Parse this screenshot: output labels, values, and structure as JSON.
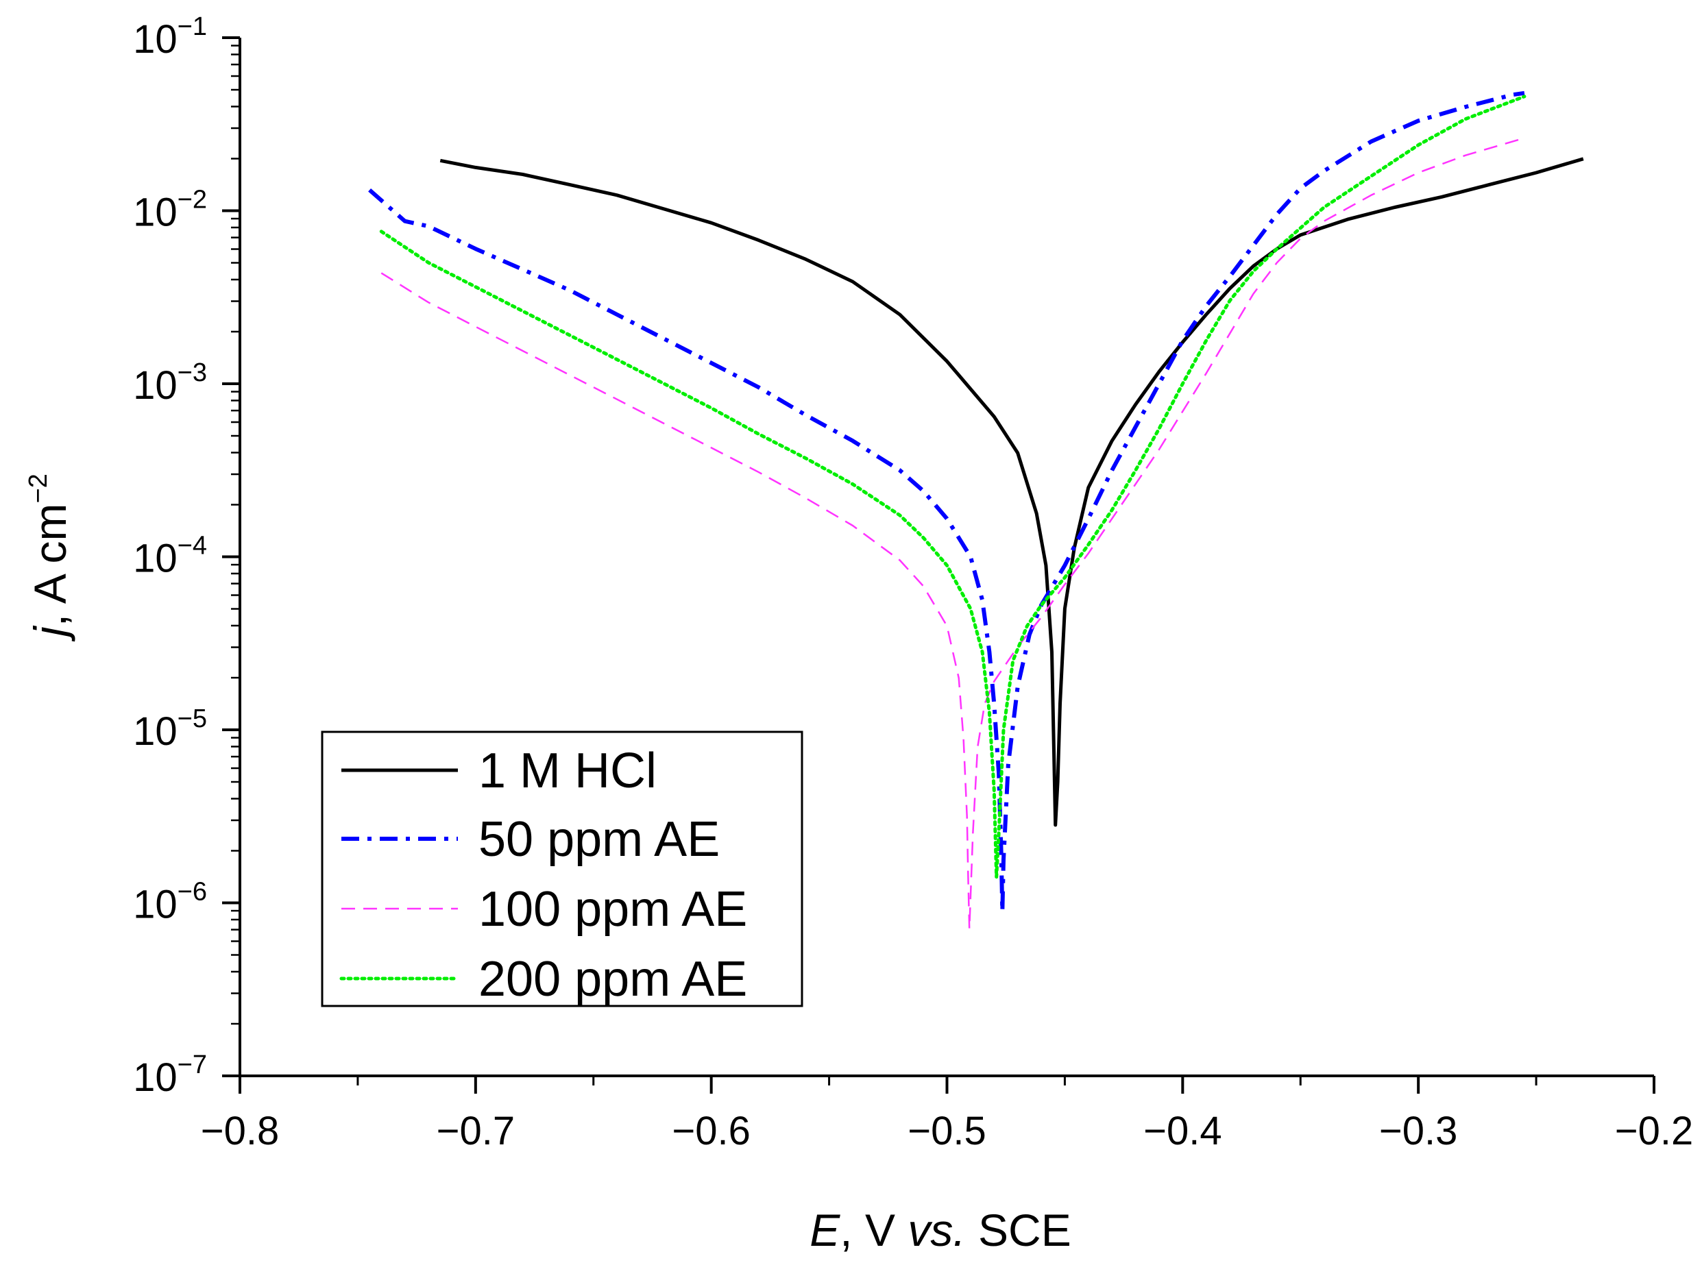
{
  "chart_data": {
    "type": "line",
    "title": "",
    "xlabel": {
      "italic": "E",
      "text": ", V ",
      "italic2": "vs.",
      "text2": " SCE"
    },
    "ylabel": {
      "italic": "j",
      "text": ", A cm",
      "sup": "−2"
    },
    "xlim": [
      -0.8,
      -0.2
    ],
    "ylim_log10": [
      -7,
      -1
    ],
    "y_scale": "log",
    "x_ticks": [
      {
        "value": -0.8,
        "label": "−0.8"
      },
      {
        "value": -0.7,
        "label": "−0.7"
      },
      {
        "value": -0.6,
        "label": "−0.6"
      },
      {
        "value": -0.5,
        "label": "−0.5"
      },
      {
        "value": -0.4,
        "label": "−0.4"
      },
      {
        "value": -0.3,
        "label": "−0.3"
      },
      {
        "value": -0.2,
        "label": "−0.2"
      }
    ],
    "x_minor_ticks": [
      -0.75,
      -0.65,
      -0.55,
      -0.45,
      -0.35,
      -0.25
    ],
    "y_ticks": [
      {
        "exp": -7,
        "base": "10",
        "sup": "−7"
      },
      {
        "exp": -6,
        "base": "10",
        "sup": "−6"
      },
      {
        "exp": -5,
        "base": "10",
        "sup": "−5"
      },
      {
        "exp": -4,
        "base": "10",
        "sup": "−4"
      },
      {
        "exp": -3,
        "base": "10",
        "sup": "−3"
      },
      {
        "exp": -2,
        "base": "10",
        "sup": "−2"
      },
      {
        "exp": -1,
        "base": "10",
        "sup": "−1"
      }
    ],
    "legend_position": "bottom-left",
    "series": [
      {
        "name": "1 M HCl",
        "color": "#000000",
        "dash": "solid",
        "points": [
          [
            -0.715,
            -1.71
          ],
          [
            -0.7,
            -1.75
          ],
          [
            -0.68,
            -1.79
          ],
          [
            -0.66,
            -1.85
          ],
          [
            -0.64,
            -1.91
          ],
          [
            -0.62,
            -1.99
          ],
          [
            -0.6,
            -2.07
          ],
          [
            -0.58,
            -2.17
          ],
          [
            -0.56,
            -2.28
          ],
          [
            -0.54,
            -2.41
          ],
          [
            -0.52,
            -2.6
          ],
          [
            -0.5,
            -2.87
          ],
          [
            -0.48,
            -3.19
          ],
          [
            -0.47,
            -3.4
          ],
          [
            -0.462,
            -3.75
          ],
          [
            -0.458,
            -4.05
          ],
          [
            -0.4555,
            -4.55
          ],
          [
            -0.4545,
            -5.2
          ],
          [
            -0.454,
            -5.55
          ],
          [
            -0.453,
            -5.3
          ],
          [
            -0.452,
            -4.85
          ],
          [
            -0.45,
            -4.3
          ],
          [
            -0.446,
            -3.95
          ],
          [
            -0.44,
            -3.6
          ],
          [
            -0.43,
            -3.33
          ],
          [
            -0.42,
            -3.12
          ],
          [
            -0.41,
            -2.93
          ],
          [
            -0.4,
            -2.76
          ],
          [
            -0.39,
            -2.6
          ],
          [
            -0.38,
            -2.45
          ],
          [
            -0.37,
            -2.32
          ],
          [
            -0.36,
            -2.22
          ],
          [
            -0.35,
            -2.14
          ],
          [
            -0.33,
            -2.05
          ],
          [
            -0.31,
            -1.98
          ],
          [
            -0.29,
            -1.92
          ],
          [
            -0.27,
            -1.85
          ],
          [
            -0.25,
            -1.78
          ],
          [
            -0.23,
            -1.7
          ]
        ]
      },
      {
        "name": "50 ppm AE",
        "color": "#0000ff",
        "dash": "dashdot",
        "points": [
          [
            -0.745,
            -1.88
          ],
          [
            -0.73,
            -2.06
          ],
          [
            -0.72,
            -2.09
          ],
          [
            -0.7,
            -2.22
          ],
          [
            -0.68,
            -2.34
          ],
          [
            -0.66,
            -2.46
          ],
          [
            -0.64,
            -2.6
          ],
          [
            -0.62,
            -2.74
          ],
          [
            -0.6,
            -2.88
          ],
          [
            -0.58,
            -3.02
          ],
          [
            -0.56,
            -3.18
          ],
          [
            -0.54,
            -3.33
          ],
          [
            -0.52,
            -3.5
          ],
          [
            -0.51,
            -3.62
          ],
          [
            -0.5,
            -3.78
          ],
          [
            -0.49,
            -4.0
          ],
          [
            -0.485,
            -4.25
          ],
          [
            -0.482,
            -4.55
          ],
          [
            -0.48,
            -4.85
          ],
          [
            -0.478,
            -5.25
          ],
          [
            -0.477,
            -5.7
          ],
          [
            -0.4765,
            -6.05
          ],
          [
            -0.476,
            -5.75
          ],
          [
            -0.474,
            -5.2
          ],
          [
            -0.47,
            -4.75
          ],
          [
            -0.465,
            -4.45
          ],
          [
            -0.46,
            -4.28
          ],
          [
            -0.45,
            -4.05
          ],
          [
            -0.44,
            -3.78
          ],
          [
            -0.43,
            -3.5
          ],
          [
            -0.42,
            -3.25
          ],
          [
            -0.41,
            -3.0
          ],
          [
            -0.4,
            -2.75
          ],
          [
            -0.39,
            -2.55
          ],
          [
            -0.38,
            -2.38
          ],
          [
            -0.37,
            -2.2
          ],
          [
            -0.36,
            -2.02
          ],
          [
            -0.35,
            -1.87
          ],
          [
            -0.34,
            -1.77
          ],
          [
            -0.32,
            -1.6
          ],
          [
            -0.3,
            -1.48
          ],
          [
            -0.28,
            -1.4
          ],
          [
            -0.26,
            -1.33
          ],
          [
            -0.255,
            -1.32
          ]
        ]
      },
      {
        "name": "100 ppm AE",
        "color": "#ff33ff",
        "dash": "dashed",
        "points": [
          [
            -0.74,
            -2.36
          ],
          [
            -0.72,
            -2.53
          ],
          [
            -0.7,
            -2.67
          ],
          [
            -0.68,
            -2.81
          ],
          [
            -0.66,
            -2.95
          ],
          [
            -0.64,
            -3.09
          ],
          [
            -0.62,
            -3.23
          ],
          [
            -0.6,
            -3.37
          ],
          [
            -0.58,
            -3.51
          ],
          [
            -0.56,
            -3.66
          ],
          [
            -0.54,
            -3.82
          ],
          [
            -0.52,
            -4.02
          ],
          [
            -0.51,
            -4.17
          ],
          [
            -0.5,
            -4.4
          ],
          [
            -0.495,
            -4.7
          ],
          [
            -0.493,
            -5.05
          ],
          [
            -0.4915,
            -5.5
          ],
          [
            -0.491,
            -5.85
          ],
          [
            -0.4905,
            -6.15
          ],
          [
            -0.489,
            -5.6
          ],
          [
            -0.487,
            -5.1
          ],
          [
            -0.484,
            -4.85
          ],
          [
            -0.48,
            -4.72
          ],
          [
            -0.47,
            -4.52
          ],
          [
            -0.46,
            -4.35
          ],
          [
            -0.45,
            -4.16
          ],
          [
            -0.44,
            -3.98
          ],
          [
            -0.43,
            -3.78
          ],
          [
            -0.42,
            -3.58
          ],
          [
            -0.41,
            -3.38
          ],
          [
            -0.4,
            -3.16
          ],
          [
            -0.39,
            -2.94
          ],
          [
            -0.38,
            -2.71
          ],
          [
            -0.37,
            -2.48
          ],
          [
            -0.36,
            -2.3
          ],
          [
            -0.35,
            -2.16
          ],
          [
            -0.34,
            -2.06
          ],
          [
            -0.32,
            -1.91
          ],
          [
            -0.3,
            -1.78
          ],
          [
            -0.28,
            -1.68
          ],
          [
            -0.255,
            -1.58
          ]
        ]
      },
      {
        "name": "200 ppm AE",
        "color": "#00ee00",
        "dash": "dotted",
        "points": [
          [
            -0.74,
            -2.12
          ],
          [
            -0.72,
            -2.3
          ],
          [
            -0.7,
            -2.44
          ],
          [
            -0.68,
            -2.58
          ],
          [
            -0.66,
            -2.72
          ],
          [
            -0.64,
            -2.86
          ],
          [
            -0.62,
            -3.0
          ],
          [
            -0.6,
            -3.14
          ],
          [
            -0.58,
            -3.29
          ],
          [
            -0.56,
            -3.43
          ],
          [
            -0.54,
            -3.58
          ],
          [
            -0.52,
            -3.76
          ],
          [
            -0.51,
            -3.89
          ],
          [
            -0.5,
            -4.05
          ],
          [
            -0.49,
            -4.3
          ],
          [
            -0.485,
            -4.55
          ],
          [
            -0.482,
            -4.9
          ],
          [
            -0.48,
            -5.35
          ],
          [
            -0.479,
            -5.85
          ],
          [
            -0.478,
            -5.6
          ],
          [
            -0.476,
            -5.0
          ],
          [
            -0.472,
            -4.6
          ],
          [
            -0.466,
            -4.4
          ],
          [
            -0.46,
            -4.28
          ],
          [
            -0.45,
            -4.12
          ],
          [
            -0.44,
            -3.93
          ],
          [
            -0.43,
            -3.73
          ],
          [
            -0.42,
            -3.5
          ],
          [
            -0.41,
            -3.26
          ],
          [
            -0.4,
            -3.0
          ],
          [
            -0.39,
            -2.75
          ],
          [
            -0.38,
            -2.52
          ],
          [
            -0.37,
            -2.35
          ],
          [
            -0.36,
            -2.22
          ],
          [
            -0.35,
            -2.1
          ],
          [
            -0.34,
            -1.98
          ],
          [
            -0.32,
            -1.8
          ],
          [
            -0.3,
            -1.62
          ],
          [
            -0.28,
            -1.47
          ],
          [
            -0.255,
            -1.34
          ]
        ]
      }
    ]
  }
}
